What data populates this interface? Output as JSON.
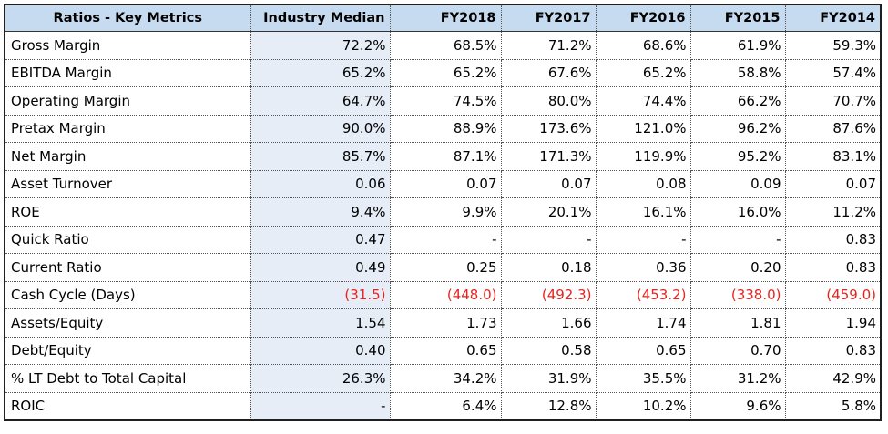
{
  "table": {
    "headers": [
      "Ratios - Key Metrics",
      "Industry Median",
      "FY2018",
      "FY2017",
      "FY2016",
      "FY2015",
      "FY2014"
    ],
    "rows": [
      {
        "label": "Gross Margin",
        "values": [
          "72.2%",
          "68.5%",
          "71.2%",
          "68.6%",
          "61.9%",
          "59.3%"
        ],
        "negative": false
      },
      {
        "label": "EBITDA Margin",
        "values": [
          "65.2%",
          "65.2%",
          "67.6%",
          "65.2%",
          "58.8%",
          "57.4%"
        ],
        "negative": false
      },
      {
        "label": "Operating Margin",
        "values": [
          "64.7%",
          "74.5%",
          "80.0%",
          "74.4%",
          "66.2%",
          "70.7%"
        ],
        "negative": false
      },
      {
        "label": "Pretax Margin",
        "values": [
          "90.0%",
          "88.9%",
          "173.6%",
          "121.0%",
          "96.2%",
          "87.6%"
        ],
        "negative": false
      },
      {
        "label": "Net Margin",
        "values": [
          "85.7%",
          "87.1%",
          "171.3%",
          "119.9%",
          "95.2%",
          "83.1%"
        ],
        "negative": false
      },
      {
        "label": "Asset Turnover",
        "values": [
          "0.06",
          "0.07",
          "0.07",
          "0.08",
          "0.09",
          "0.07"
        ],
        "negative": false
      },
      {
        "label": "ROE",
        "values": [
          "9.4%",
          "9.9%",
          "20.1%",
          "16.1%",
          "16.0%",
          "11.2%"
        ],
        "negative": false
      },
      {
        "label": "Quick Ratio",
        "values": [
          "0.47",
          "-",
          "-",
          "-",
          "-",
          "0.83"
        ],
        "negative": false
      },
      {
        "label": "Current Ratio",
        "values": [
          "0.49",
          "0.25",
          "0.18",
          "0.36",
          "0.20",
          "0.83"
        ],
        "negative": false
      },
      {
        "label": "Cash Cycle (Days)",
        "values": [
          "(31.5)",
          "(448.0)",
          "(492.3)",
          "(453.2)",
          "(338.0)",
          "(459.0)"
        ],
        "negative": true
      },
      {
        "label": "Assets/Equity",
        "values": [
          "1.54",
          "1.73",
          "1.66",
          "1.74",
          "1.81",
          "1.94"
        ],
        "negative": false
      },
      {
        "label": "Debt/Equity",
        "values": [
          "0.40",
          "0.65",
          "0.58",
          "0.65",
          "0.70",
          "0.83"
        ],
        "negative": false
      },
      {
        "label": "% LT Debt to Total Capital",
        "values": [
          "26.3%",
          "34.2%",
          "31.9%",
          "35.5%",
          "31.2%",
          "42.9%"
        ],
        "negative": false
      },
      {
        "label": "ROIC",
        "values": [
          "-",
          "6.4%",
          "12.8%",
          "10.2%",
          "9.6%",
          "5.8%"
        ],
        "negative": false
      }
    ]
  },
  "colors": {
    "header_bg": "#c6dbf0",
    "median_bg": "#e6edf7",
    "negative_text": "#e8231f"
  }
}
